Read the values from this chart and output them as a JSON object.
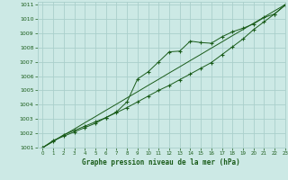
{
  "title": "Graphe pression niveau de la mer (hPa)",
  "background_color": "#cce9e5",
  "grid_color": "#aacfcb",
  "line_color": "#1a5c1a",
  "marker_color": "#1a5c1a",
  "xlim": [
    -0.5,
    23
  ],
  "ylim": [
    1001,
    1011.2
  ],
  "xticks": [
    0,
    1,
    2,
    3,
    4,
    5,
    6,
    7,
    8,
    9,
    10,
    11,
    12,
    13,
    14,
    15,
    16,
    17,
    18,
    19,
    20,
    21,
    22,
    23
  ],
  "yticks": [
    1001,
    1002,
    1003,
    1004,
    1005,
    1006,
    1007,
    1008,
    1009,
    1010,
    1011
  ],
  "series1_x": [
    0,
    1,
    2,
    3,
    4,
    5,
    6,
    7,
    8,
    9,
    10,
    11,
    12,
    13,
    14,
    15,
    16,
    17,
    18,
    19,
    20,
    21,
    22,
    23
  ],
  "series1_y": [
    1001.0,
    1001.5,
    1001.8,
    1002.1,
    1002.4,
    1002.7,
    1003.1,
    1003.5,
    1004.2,
    1005.8,
    1006.3,
    1007.0,
    1007.7,
    1007.75,
    1008.45,
    1008.35,
    1008.3,
    1008.75,
    1009.1,
    1009.35,
    1009.65,
    1010.1,
    1010.35,
    1011.0
  ],
  "series2_x": [
    0,
    1,
    2,
    3,
    4,
    5,
    6,
    7,
    8,
    9,
    10,
    11,
    12,
    13,
    14,
    15,
    16,
    17,
    18,
    19,
    20,
    21,
    22,
    23
  ],
  "series2_y": [
    1001.0,
    1001.43,
    1001.87,
    1002.3,
    1002.74,
    1003.17,
    1003.61,
    1004.04,
    1004.48,
    1004.91,
    1005.35,
    1005.78,
    1006.22,
    1006.65,
    1007.09,
    1007.52,
    1007.96,
    1008.39,
    1008.83,
    1009.26,
    1009.7,
    1010.13,
    1010.57,
    1011.0
  ],
  "series3_x": [
    0,
    1,
    2,
    3,
    4,
    5,
    6,
    7,
    8,
    9,
    10,
    11,
    12,
    13,
    14,
    15,
    16,
    17,
    18,
    19,
    20,
    21,
    22,
    23
  ],
  "series3_y": [
    1001.0,
    1001.45,
    1001.9,
    1002.2,
    1002.5,
    1002.8,
    1003.1,
    1003.45,
    1003.8,
    1004.2,
    1004.6,
    1005.0,
    1005.35,
    1005.75,
    1006.15,
    1006.55,
    1006.95,
    1007.5,
    1008.05,
    1008.6,
    1009.25,
    1009.8,
    1010.35,
    1010.95
  ]
}
